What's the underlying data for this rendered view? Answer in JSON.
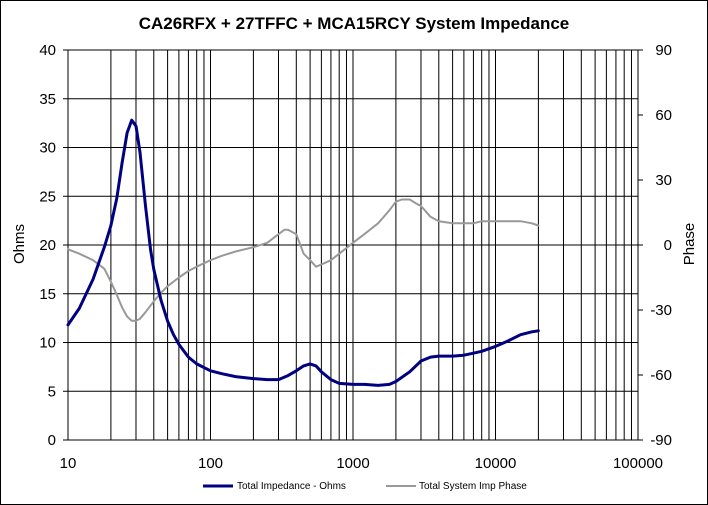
{
  "chart_data": {
    "type": "line",
    "title": "CA26RFX + 27TFFC + MCA15RCY  System Impedance",
    "xlabel": "",
    "ylabel": "Ohms",
    "y2label": "Phase",
    "x_scale": "log",
    "xlim": [
      10,
      100000
    ],
    "ylim": [
      0,
      40
    ],
    "y2lim": [
      -90,
      90
    ],
    "x_ticks": [
      "10",
      "100",
      "1000",
      "10000",
      "100000"
    ],
    "y_ticks": [
      "0",
      "5",
      "10",
      "15",
      "20",
      "25",
      "30",
      "35",
      "40"
    ],
    "y2_ticks": [
      "-90",
      "-60",
      "-30",
      "0",
      "30",
      "60",
      "90"
    ],
    "grid": true,
    "legend_position": "bottom",
    "series": [
      {
        "name": "Total Impedance - Ohms",
        "axis": "left",
        "color": "#000080",
        "x": [
          10,
          12,
          15,
          18,
          20,
          22,
          24,
          26,
          28,
          30,
          32,
          35,
          38,
          40,
          45,
          50,
          55,
          60,
          70,
          80,
          100,
          120,
          150,
          200,
          250,
          300,
          350,
          400,
          450,
          500,
          550,
          600,
          700,
          800,
          1000,
          1200,
          1500,
          1800,
          2000,
          2500,
          3000,
          3500,
          4000,
          5000,
          6000,
          7000,
          8000,
          10000,
          12000,
          15000,
          18000,
          20000
        ],
        "values": [
          11.8,
          13.5,
          16.5,
          19.8,
          22.0,
          24.8,
          28.5,
          31.5,
          32.8,
          32.2,
          29.5,
          24.0,
          19.5,
          17.5,
          14.3,
          12.2,
          10.8,
          9.8,
          8.5,
          7.8,
          7.1,
          6.8,
          6.5,
          6.3,
          6.2,
          6.2,
          6.6,
          7.1,
          7.6,
          7.8,
          7.6,
          7.0,
          6.2,
          5.8,
          5.7,
          5.7,
          5.6,
          5.7,
          6.0,
          7.0,
          8.1,
          8.5,
          8.6,
          8.6,
          8.7,
          8.9,
          9.1,
          9.6,
          10.1,
          10.8,
          11.1,
          11.2
        ]
      },
      {
        "name": "Total System Imp Phase",
        "axis": "right",
        "color": "#999999",
        "x": [
          10,
          12,
          15,
          18,
          20,
          22,
          24,
          26,
          28,
          30,
          32,
          35,
          40,
          45,
          50,
          60,
          70,
          80,
          100,
          120,
          150,
          200,
          250,
          300,
          330,
          350,
          400,
          450,
          500,
          550,
          600,
          700,
          800,
          1000,
          1200,
          1500,
          1800,
          2000,
          2200,
          2500,
          2800,
          3000,
          3500,
          4000,
          5000,
          6000,
          7000,
          8000,
          10000,
          12000,
          15000,
          18000,
          20000
        ],
        "values": [
          -2,
          -4,
          -7,
          -11,
          -17,
          -23,
          -29,
          -33,
          -35,
          -35,
          -34,
          -31,
          -26,
          -22,
          -19,
          -15,
          -12,
          -10,
          -7,
          -5,
          -3,
          -1,
          1,
          5,
          7,
          7,
          5,
          -4,
          -7,
          -10,
          -9,
          -7,
          -4,
          1,
          5,
          10,
          16,
          20,
          21,
          21,
          19,
          18,
          13,
          11,
          10,
          10,
          10,
          11,
          11,
          11,
          11,
          10,
          9
        ]
      }
    ]
  }
}
